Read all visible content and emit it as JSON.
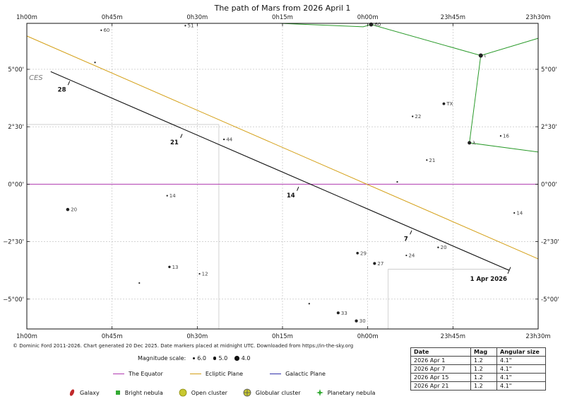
{
  "chart_data": {
    "type": "scatter",
    "title": "The path of Mars from 2026 April 1",
    "x_axis_ticks": [
      "1h00m",
      "0h45m",
      "0h30m",
      "0h15m",
      "0h00m",
      "23h45m",
      "23h30m"
    ],
    "x_axis_direction": "right-ascension decreasing to the right",
    "y_axis_ticks": [
      "5°00'",
      "2°30'",
      "0°00'",
      "−2°30'",
      "−5°00'"
    ],
    "y_axis_ticks_right": [
      "5°00'",
      "2°30'",
      "0°00'",
      "-2°30'",
      "-5°00'"
    ],
    "xlim_minutes": [
      60,
      -30
    ],
    "ylim_degrees": [
      -6.3,
      7.0
    ],
    "grid": true,
    "constellation_label": "CES",
    "mars_path": [
      {
        "label": "28",
        "ra_min": 52.6,
        "dec_deg": 4.4
      },
      {
        "label": "21",
        "ra_min": 32.8,
        "dec_deg": 2.1
      },
      {
        "label": "14",
        "ra_min": 12.3,
        "dec_deg": -0.2
      },
      {
        "label": "7",
        "ra_min": -7.6,
        "dec_deg": -2.1
      },
      {
        "label": "1 Apr 2026",
        "ra_min": -24.9,
        "dec_deg": -3.75
      }
    ],
    "path_endpoints": {
      "start": {
        "ra_min": 55.8,
        "dec_deg": 4.9
      },
      "end": {
        "ra_min": -24.9,
        "dec_deg": -3.75
      }
    },
    "ecliptic": [
      {
        "ra_min": 60.0,
        "dec_deg": 6.45
      },
      {
        "ra_min": -30.0,
        "dec_deg": -3.25
      }
    ],
    "equator_dec_deg": 0,
    "stars": [
      {
        "label": "60",
        "ra_min": 46.9,
        "dec_deg": 6.7,
        "mag": 5.8
      },
      {
        "label": "51",
        "ra_min": 32.1,
        "dec_deg": 6.9,
        "mag": 5.9
      },
      {
        "label": "",
        "ra_min": 48.0,
        "dec_deg": 5.3,
        "mag": 6.0
      },
      {
        "label": "44",
        "ra_min": 25.3,
        "dec_deg": 1.95,
        "mag": 5.6
      },
      {
        "label": "14",
        "ra_min": 35.3,
        "dec_deg": -0.5,
        "mag": 5.8
      },
      {
        "label": "20",
        "ra_min": 52.8,
        "dec_deg": -1.1,
        "mag": 4.7
      },
      {
        "label": "13",
        "ra_min": 34.9,
        "dec_deg": -3.6,
        "mag": 5.2
      },
      {
        "label": "12",
        "ra_min": 29.6,
        "dec_deg": -3.9,
        "mag": 5.9
      },
      {
        "label": "",
        "ra_min": 40.2,
        "dec_deg": -4.3,
        "mag": 6.0
      },
      {
        "label": "",
        "ra_min": 10.3,
        "dec_deg": -5.2,
        "mag": 6.0
      },
      {
        "label": "33",
        "ra_min": 5.2,
        "dec_deg": -5.6,
        "mag": 4.9
      },
      {
        "label": "30",
        "ra_min": 2.0,
        "dec_deg": -5.95,
        "mag": 4.8
      },
      {
        "label": "29",
        "ra_min": 1.8,
        "dec_deg": -3.0,
        "mag": 5.1
      },
      {
        "label": "27",
        "ra_min": -1.2,
        "dec_deg": -3.45,
        "mag": 4.9
      },
      {
        "label": "24",
        "ra_min": -6.8,
        "dec_deg": -3.1,
        "mag": 5.9
      },
      {
        "label": "20",
        "ra_min": -12.4,
        "dec_deg": -2.75,
        "mag": 5.6
      },
      {
        "label": "",
        "ra_min": -5.2,
        "dec_deg": 0.1,
        "mag": 6.0
      },
      {
        "label": "21",
        "ra_min": -10.4,
        "dec_deg": 1.05,
        "mag": 5.8
      },
      {
        "label": "22",
        "ra_min": -7.9,
        "dec_deg": 2.95,
        "mag": 5.6
      },
      {
        "label": "TX",
        "ra_min": -13.4,
        "dec_deg": 3.5,
        "mag": 5.0
      },
      {
        "label": "16",
        "ra_min": -23.4,
        "dec_deg": 2.1,
        "mag": 5.8
      },
      {
        "label": "14",
        "ra_min": -25.8,
        "dec_deg": -1.25,
        "mag": 5.9
      },
      {
        "label": "60",
        "ra_min": -0.6,
        "dec_deg": 6.95,
        "mag": 4.2
      },
      {
        "label": "ι",
        "ra_min": -19.9,
        "dec_deg": 5.6,
        "mag": 4.1
      },
      {
        "label": "λ",
        "ra_min": -17.9,
        "dec_deg": 1.8,
        "mag": 4.5
      }
    ],
    "constellation_lines": [
      [
        {
          "ra_min": 15.5,
          "dec_deg": 7.0
        },
        {
          "ra_min": 0.8,
          "dec_deg": 6.85
        },
        {
          "ra_min": -0.6,
          "dec_deg": 6.95
        },
        {
          "ra_min": -19.9,
          "dec_deg": 5.6
        },
        {
          "ra_min": -30.0,
          "dec_deg": 6.35
        }
      ],
      [
        {
          "ra_min": -19.9,
          "dec_deg": 5.6
        },
        {
          "ra_min": -17.9,
          "dec_deg": 1.8
        },
        {
          "ra_min": -30.0,
          "dec_deg": 1.4
        }
      ]
    ],
    "boundaries": [
      [
        {
          "ra_min": 60.0,
          "dec_deg": 2.6
        },
        {
          "ra_min": 26.2,
          "dec_deg": 2.6
        },
        {
          "ra_min": 26.2,
          "dec_deg": -6.3
        }
      ],
      [
        {
          "ra_min": 26.2,
          "dec_deg": -6.3
        },
        {
          "ra_min": -3.6,
          "dec_deg": -6.3
        },
        {
          "ra_min": -3.6,
          "dec_deg": -3.7
        },
        {
          "ra_min": -24.9,
          "dec_deg": -3.7
        }
      ]
    ],
    "magnitude_scale_label": "Magnitude scale:",
    "magnitude_scale": [
      "6.0",
      "5.0",
      "4.0"
    ]
  },
  "credit": "© Dominic Ford 2011-2026. Chart generated 20 Dec 2025. Date markers placed at midnight UTC. Downloaded from https://in-the-sky.org",
  "legend_lines": [
    {
      "label": "The Equator",
      "color": "#b03ab0"
    },
    {
      "label": "Ecliptic Plane",
      "color": "#d4a017"
    },
    {
      "label": "Galactic Plane",
      "color": "#3333aa"
    }
  ],
  "legend_types": [
    {
      "label": "Galaxy",
      "icon": "galaxy-icon",
      "color": "#c0292b"
    },
    {
      "label": "Bright nebula",
      "icon": "bright-nebula-icon",
      "color": "#33aa33"
    },
    {
      "label": "Open cluster",
      "icon": "open-cluster-icon",
      "color": "#c8c830"
    },
    {
      "label": "Globular cluster",
      "icon": "globular-cluster-icon",
      "color": "#c8c830"
    },
    {
      "label": "Planetary nebula",
      "icon": "planetary-nebula-icon",
      "color": "#33aa33"
    }
  ],
  "table": {
    "headers": [
      "Date",
      "Mag",
      "Angular size"
    ],
    "rows": [
      [
        "2026 Apr 1",
        "1.2",
        "4.1\""
      ],
      [
        "2026 Apr 7",
        "1.2",
        "4.1\""
      ],
      [
        "2026 Apr 15",
        "1.2",
        "4.1\""
      ],
      [
        "2026 Apr 21",
        "1.2",
        "4.1\""
      ]
    ]
  }
}
